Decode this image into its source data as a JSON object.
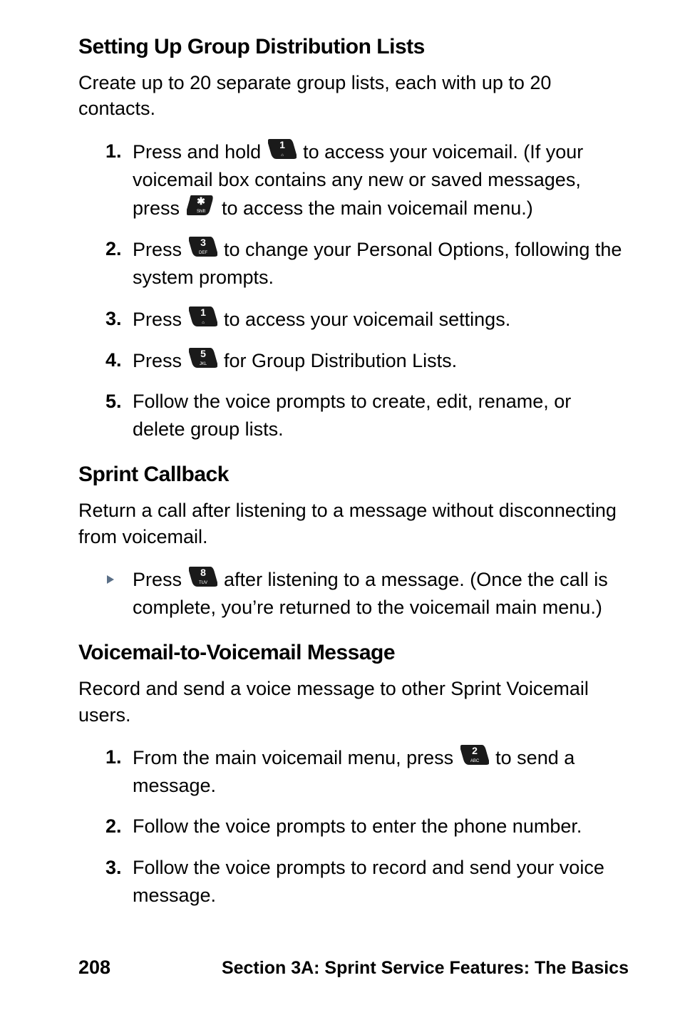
{
  "headings": {
    "h2_a": "Setting Up Group Distribution Lists",
    "h2_b": "Sprint Callback",
    "h2_c": "Voicemail-to-Voicemail Message"
  },
  "paras": {
    "a_intro": "Create up to 20 separate group lists, each with up to 20 contacts.",
    "b_intro": "Return a call after listening to a message without disconnecting from voicemail.",
    "c_intro": "Record and send a voice message to other Sprint Voicemail users."
  },
  "section_a_steps": [
    {
      "num": "1.",
      "pre": "Press and hold ",
      "key": "1",
      "mid": " to access your voicemail. (If your voicemail box contains any new or saved messages, press ",
      "key2": "star",
      "post": " to access the main voicemail menu.)"
    },
    {
      "num": "2.",
      "pre": "Press ",
      "key": "3",
      "post": " to change your Personal Options, following the system prompts."
    },
    {
      "num": "3.",
      "pre": "Press ",
      "key": "1",
      "post": " to access your voicemail settings."
    },
    {
      "num": "4.",
      "pre": "Press ",
      "key": "5",
      "post": " for Group Distribution Lists."
    },
    {
      "num": "5.",
      "pre": "Follow the voice prompts to create, edit, rename, or delete group lists."
    }
  ],
  "section_b_bullets": [
    {
      "pre": "Press ",
      "key": "8",
      "post": " after listening to a message. (Once the call is complete, you’re returned to the voicemail main menu.)"
    }
  ],
  "section_c_steps": [
    {
      "num": "1.",
      "pre": "From the main voicemail menu, press ",
      "key": "2",
      "post": " to send a message."
    },
    {
      "num": "2.",
      "pre": "Follow the voice prompts to enter the phone number."
    },
    {
      "num": "3.",
      "pre": "Follow the voice prompts to record and send your voice message."
    }
  ],
  "footer": {
    "page": "208",
    "section": "Section 3A: Sprint Service Features: The Basics"
  },
  "key_glyphs": {
    "1": {
      "main": "1",
      "sub": "⌂"
    },
    "2": {
      "main": "2",
      "sub": "ABC"
    },
    "3": {
      "main": "3",
      "sub": "DEF"
    },
    "5": {
      "main": "5",
      "sub": "JKL"
    },
    "8": {
      "main": "8",
      "sub": "TUV"
    },
    "star": {
      "main": "✱",
      "sub": "Shift"
    }
  },
  "style": {
    "body_color": "#000000",
    "triangle_color": "#5a6f87",
    "key_fill": "#1a1a1a",
    "key_text": "#ffffff"
  }
}
